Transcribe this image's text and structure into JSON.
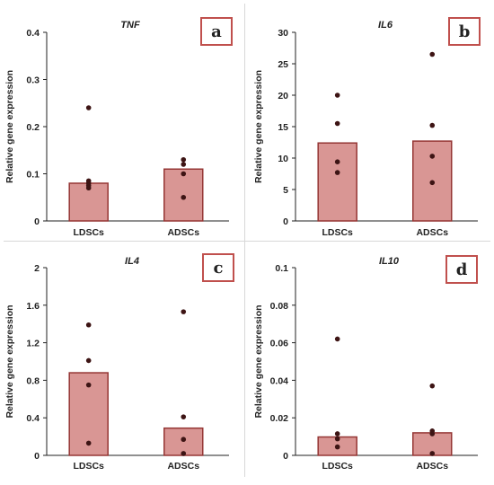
{
  "chart_data": [
    {
      "type": "bar",
      "panel_letter": "a",
      "title": "TNF",
      "xlabel": "",
      "ylabel": "Relative gene expression",
      "categories": [
        "LDSCs",
        "ADSCs"
      ],
      "values": [
        0.08,
        0.11
      ],
      "points": [
        [
          0.24,
          0.085,
          0.08,
          0.075,
          0.07
        ],
        [
          0.13,
          0.12,
          0.1,
          0.05
        ]
      ],
      "ylim": [
        0,
        0.4
      ],
      "yticks": [
        "0",
        "0.1",
        "0.2",
        "0.3",
        "0.4"
      ],
      "ytick_values": [
        0,
        0.1,
        0.2,
        0.3,
        0.4
      ]
    },
    {
      "type": "bar",
      "panel_letter": "b",
      "title": "IL6",
      "xlabel": "",
      "ylabel": "Relative gene expression",
      "categories": [
        "LDSCs",
        "ADSCs"
      ],
      "values": [
        12.4,
        12.7
      ],
      "points": [
        [
          20.0,
          15.5,
          9.4,
          7.7
        ],
        [
          26.5,
          15.2,
          10.3,
          6.1
        ]
      ],
      "ylim": [
        0,
        30
      ],
      "yticks": [
        "0",
        "5",
        "10",
        "15",
        "20",
        "25",
        "30"
      ],
      "ytick_values": [
        0,
        5,
        10,
        15,
        20,
        25,
        30
      ]
    },
    {
      "type": "bar",
      "panel_letter": "c",
      "title": "IL4",
      "xlabel": "",
      "ylabel": "Relative gene expression",
      "categories": [
        "LDSCs",
        "ADSCs"
      ],
      "values": [
        0.88,
        0.29
      ],
      "points": [
        [
          1.39,
          1.01,
          0.75,
          0.13
        ],
        [
          1.53,
          0.41,
          0.17,
          0.02
        ]
      ],
      "ylim": [
        0,
        2
      ],
      "yticks": [
        "0",
        "0.4",
        "0.8",
        "1.2",
        "1.6",
        "2"
      ],
      "ytick_values": [
        0,
        0.4,
        0.8,
        1.2,
        1.6,
        2
      ]
    },
    {
      "type": "bar",
      "panel_letter": "d",
      "title": "IL10",
      "xlabel": "",
      "ylabel": "Relative gene expression",
      "categories": [
        "LDSCs",
        "ADSCs"
      ],
      "values": [
        0.0098,
        0.012
      ],
      "points": [
        [
          0.062,
          0.0115,
          0.0088,
          0.0045
        ],
        [
          0.037,
          0.013,
          0.0115,
          0.001
        ]
      ],
      "ylim": [
        0,
        0.1
      ],
      "yticks": [
        "0",
        "0.02",
        "0.04",
        "0.06",
        "0.08",
        "0.1"
      ],
      "ytick_values": [
        0,
        0.02,
        0.04,
        0.06,
        0.08,
        0.1
      ]
    }
  ],
  "colors": {
    "bar_fill": "#d99694",
    "bar_stroke": "#953735",
    "point": "#3d1414",
    "axis": "#222222",
    "badge_border": "#c0504d"
  }
}
